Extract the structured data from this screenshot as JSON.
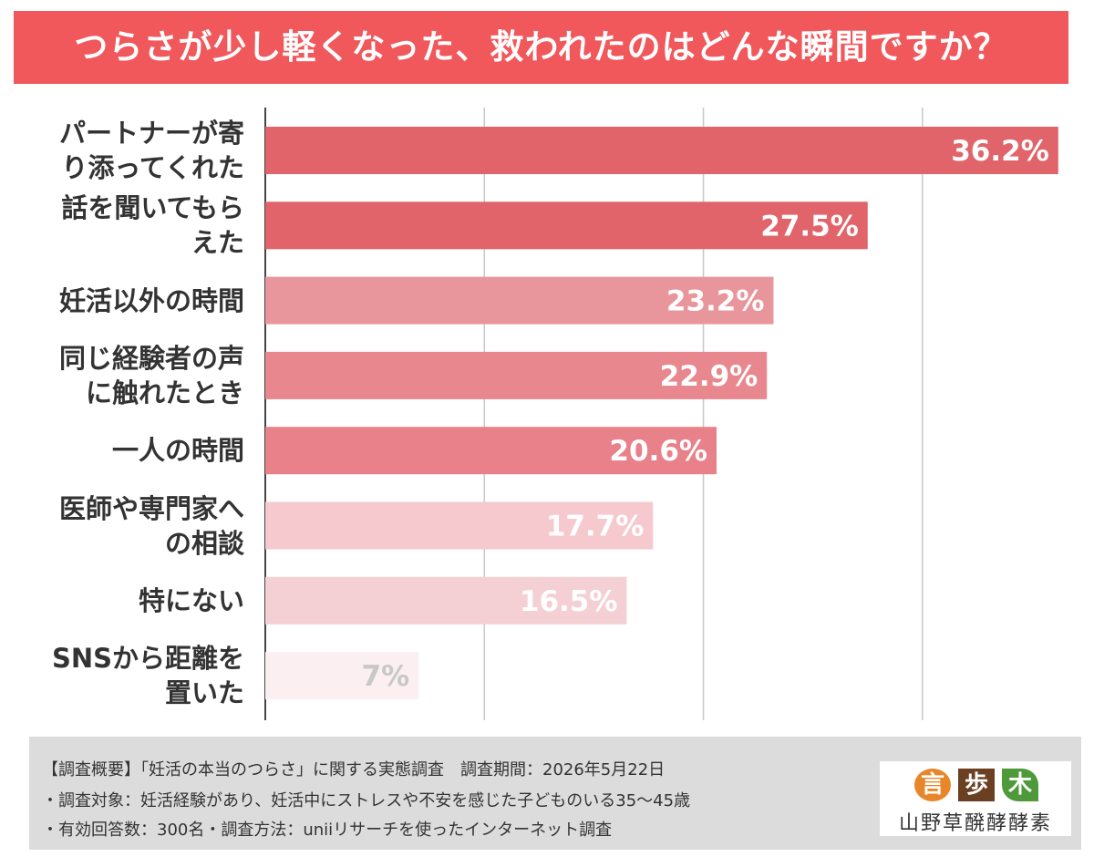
{
  "chart_data": {
    "type": "bar",
    "orientation": "horizontal",
    "title": "つらさが少し軽くなった、救われたのはどんな瞬間ですか？",
    "categories": [
      "パートナーが寄り添ってくれた",
      "話を聞いてもらえた",
      "妊活以外の時間",
      "同じ経験者の声に触れたとき",
      "一人の時間",
      "医師や専門家への相談",
      "特にない",
      "SNSから距離を置いた"
    ],
    "values": [
      36.2,
      27.5,
      23.2,
      22.9,
      20.6,
      17.7,
      16.5,
      7
    ],
    "value_labels": [
      "36.2%",
      "27.5%",
      "23.2%",
      "22.9%",
      "20.6%",
      "17.7%",
      "16.5%",
      "7%"
    ],
    "colors": [
      "#e0646a",
      "#e0646a",
      "#e8959b",
      "#e8878e",
      "#e88189",
      "#f6c9ce",
      "#f4d0d4",
      "#fbeff1"
    ],
    "value_label_colors": [
      "#ffffff",
      "#ffffff",
      "#ffffff",
      "#ffffff",
      "#ffffff",
      "#ffffff",
      "#ffffff",
      "#c8c8c8"
    ],
    "xlim": [
      0,
      36.5
    ],
    "xticks": [
      0,
      10,
      20,
      30
    ],
    "grid": true,
    "notes": [
      "【調査概要】「妊活の本当のつらさ」に関する実態調査　調査期間：2026年5月22日",
      "・調査対象：妊活経験があり、妊活中にストレスや不安を感じた子どものいる35〜45歳",
      "・有効回答数：300名・調査方法：uniiリサーチを使ったインターネット調査"
    ],
    "logo": {
      "marks": [
        "言",
        "歩",
        "木"
      ],
      "name": "山野草醗酵酵素"
    }
  }
}
